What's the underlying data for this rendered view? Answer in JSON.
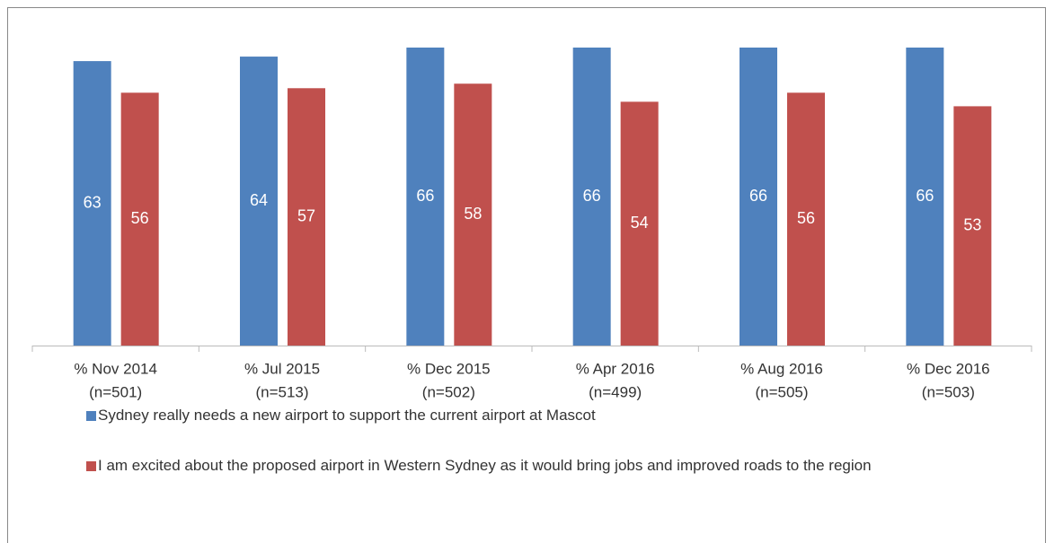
{
  "chart_data": {
    "type": "bar",
    "categories": [
      [
        "% Nov 2014",
        "(n=501)"
      ],
      [
        "% Jul 2015",
        "(n=513)"
      ],
      [
        "% Dec 2015",
        "(n=502)"
      ],
      [
        "% Apr 2016",
        "(n=499)"
      ],
      [
        "% Aug 2016",
        "(n=505)"
      ],
      [
        "% Dec 2016",
        "(n=503)"
      ]
    ],
    "series": [
      {
        "name": "Sydney really needs a new airport to support the current airport at Mascot",
        "color": "#4f81bd",
        "values": [
          63,
          64,
          66,
          66,
          66,
          66
        ]
      },
      {
        "name": "I am excited about the proposed airport in Western Sydney as it would bring jobs and improved roads to the region",
        "color": "#c0504d",
        "values": [
          56,
          57,
          58,
          54,
          56,
          53
        ]
      }
    ],
    "ylim": [
      0,
      66
    ]
  }
}
